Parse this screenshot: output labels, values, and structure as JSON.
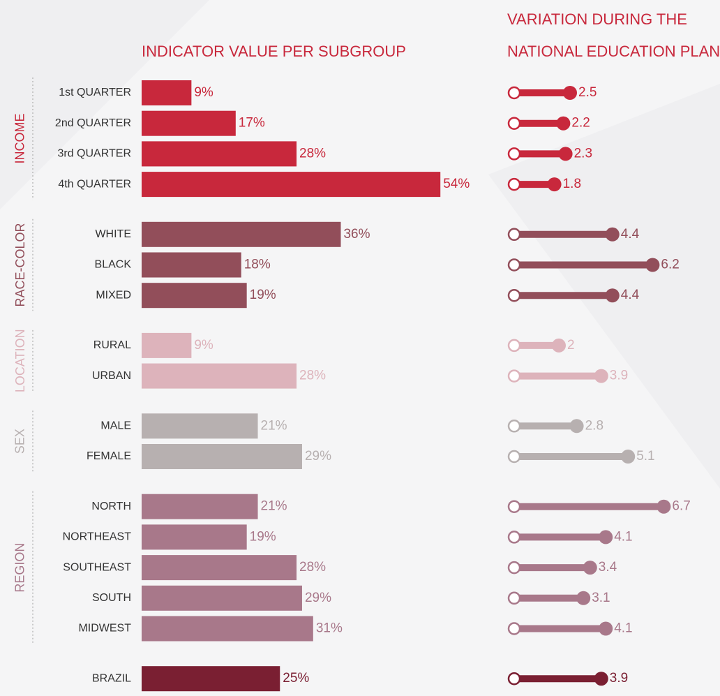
{
  "chart_data": {
    "type": "bar",
    "title": "INDICATOR VALUE PER SUBGROUP",
    "variation_title": [
      "VARIATION DURING THE",
      "NATIONAL EDUCATION PLAN"
    ],
    "groups": [
      {
        "name": "INCOME",
        "color": "#c8283c",
        "categories": [
          "1st QUARTER",
          "2nd QUARTER",
          "3rd QUARTER",
          "4th QUARTER"
        ],
        "values": [
          9,
          17,
          28,
          54
        ],
        "value_labels": [
          "9%",
          "17%",
          "28%",
          "54%"
        ],
        "variation": [
          2.5,
          2.2,
          2.3,
          1.8
        ]
      },
      {
        "name": "RACE-COLOR",
        "color": "#924e5a",
        "categories": [
          "WHITE",
          "BLACK",
          "MIXED"
        ],
        "values": [
          36,
          18,
          19
        ],
        "value_labels": [
          "36%",
          "18%",
          "19%"
        ],
        "variation": [
          4.4,
          6.2,
          4.4
        ]
      },
      {
        "name": "LOCATION",
        "color": "#ddb3bb",
        "categories": [
          "RURAL",
          "URBAN"
        ],
        "values": [
          9,
          28
        ],
        "value_labels": [
          "9%",
          "28%"
        ],
        "variation": [
          2,
          3.9
        ]
      },
      {
        "name": "SEX",
        "color": "#b7b0b0",
        "categories": [
          "MALE",
          "FEMALE"
        ],
        "values": [
          21,
          29
        ],
        "value_labels": [
          "21%",
          "29%"
        ],
        "variation": [
          2.8,
          5.1
        ]
      },
      {
        "name": "REGION",
        "color": "#a8788a",
        "categories": [
          "NORTH",
          "NORTHEAST",
          "SOUTHEAST",
          "SOUTH",
          "MIDWEST"
        ],
        "values": [
          21,
          19,
          28,
          29,
          31
        ],
        "value_labels": [
          "21%",
          "19%",
          "28%",
          "29%",
          "31%"
        ],
        "variation": [
          6.7,
          4.1,
          3.4,
          3.1,
          4.1
        ]
      },
      {
        "color": "#7a1f32",
        "categories": [
          "BRAZIL"
        ],
        "values": [
          25
        ],
        "value_labels": [
          "25%"
        ],
        "variation": [
          3.9
        ]
      }
    ]
  }
}
